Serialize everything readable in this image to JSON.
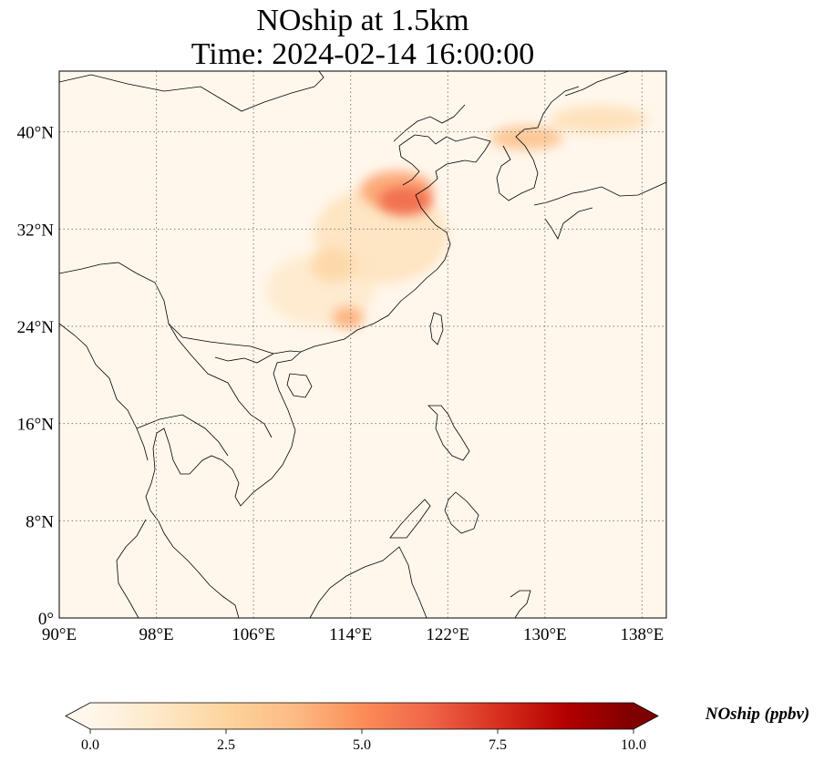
{
  "title": {
    "line1": "NOship at 1.5km",
    "line2": "Time: 2024-02-14 16:00:00"
  },
  "map": {
    "extent": {
      "lon": [
        90,
        140
      ],
      "lat": [
        0,
        45
      ]
    },
    "gridlines": "dotted",
    "x_ticks": [
      {
        "value": 90,
        "label": "90°E"
      },
      {
        "value": 98,
        "label": "98°E"
      },
      {
        "value": 106,
        "label": "106°E"
      },
      {
        "value": 114,
        "label": "114°E"
      },
      {
        "value": 122,
        "label": "122°E"
      },
      {
        "value": 130,
        "label": "130°E"
      },
      {
        "value": 138,
        "label": "138°E"
      }
    ],
    "y_ticks": [
      {
        "value": 0,
        "label": "0°"
      },
      {
        "value": 8,
        "label": "8°N"
      },
      {
        "value": 16,
        "label": "16°N"
      },
      {
        "value": 24,
        "label": "24°N"
      },
      {
        "value": 32,
        "label": "32°N"
      },
      {
        "value": 40,
        "label": "40°N"
      }
    ],
    "hotspots": [
      {
        "lon": 118.5,
        "lat": 34.3,
        "value": 6.2,
        "rx": 2.2,
        "ry": 1.2
      },
      {
        "lon": 117.8,
        "lat": 35.2,
        "value": 4.5,
        "rx": 3.0,
        "ry": 1.6
      },
      {
        "lon": 113.8,
        "lat": 24.7,
        "value": 4.2,
        "rx": 1.3,
        "ry": 0.9
      },
      {
        "lon": 112.5,
        "lat": 29.0,
        "value": 2.3,
        "rx": 1.8,
        "ry": 1.4
      },
      {
        "lon": 128.5,
        "lat": 39.5,
        "value": 3.5,
        "rx": 3.0,
        "ry": 1.0
      },
      {
        "lon": 134.5,
        "lat": 41.0,
        "value": 1.8,
        "rx": 4.0,
        "ry": 1.2
      },
      {
        "lon": 116.5,
        "lat": 31.5,
        "value": 1.6,
        "rx": 5.5,
        "ry": 4.0
      },
      {
        "lon": 111.5,
        "lat": 27.0,
        "value": 1.1,
        "rx": 4.5,
        "ry": 3.0
      }
    ]
  },
  "colorbar": {
    "label": "NOship (ppbv)",
    "range": [
      0.0,
      10.0
    ],
    "ticks": [
      {
        "value": 0.0,
        "label": "0.0"
      },
      {
        "value": 2.5,
        "label": "2.5"
      },
      {
        "value": 5.0,
        "label": "5.0"
      },
      {
        "value": 7.5,
        "label": "7.5"
      },
      {
        "value": 10.0,
        "label": "10.0"
      }
    ],
    "extend": "both",
    "colormap": "OrRd",
    "stops": [
      "#fff7ec",
      "#fee8c8",
      "#fdd49e",
      "#fdbb84",
      "#fc8d59",
      "#ef6548",
      "#d7301f",
      "#b30000",
      "#7f0000"
    ]
  }
}
